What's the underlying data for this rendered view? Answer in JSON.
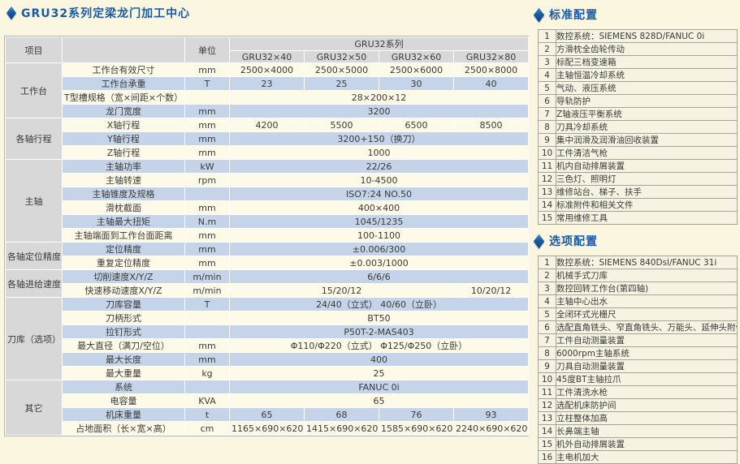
{
  "page": {
    "title": "GRU32系列定梁龙门加工中心"
  },
  "colors": {
    "title_blue": "#1b5aa5",
    "header_grey": "#d8d8d8",
    "row_cream": "#fdfae7",
    "row_blue": "#c5d4e8",
    "page_background": "#faf6df",
    "config_row_bg": "#f6f3e2"
  },
  "spec_table": {
    "header": {
      "item_label": "项目",
      "unit_label": "单位",
      "series_label": "GRU32系列",
      "models": [
        "GRU32×40",
        "GRU32×50",
        "GRU32×60",
        "GRU32×80"
      ]
    },
    "groups": [
      {
        "label": "工作台",
        "rows": [
          {
            "name": "工作台有效尺寸",
            "unit": "mm",
            "cells": [
              {
                "text": "2500×4000",
                "colspan": 1
              },
              {
                "text": "2500×5000",
                "colspan": 1
              },
              {
                "text": "2500×6000",
                "colspan": 1
              },
              {
                "text": "2500×8000",
                "colspan": 1
              }
            ]
          },
          {
            "name": "工作台承重",
            "unit": "T",
            "cells": [
              {
                "text": "23",
                "colspan": 1
              },
              {
                "text": "25",
                "colspan": 1
              },
              {
                "text": "30",
                "colspan": 1
              },
              {
                "text": "40",
                "colspan": 1
              }
            ]
          },
          {
            "name": "T型槽规格（宽×间距×个数）",
            "unit": "",
            "cells": [
              {
                "text": "28×200×12",
                "colspan": 4
              }
            ]
          },
          {
            "name": "龙门宽度",
            "unit": "mm",
            "cells": [
              {
                "text": "3200",
                "colspan": 4
              }
            ]
          }
        ]
      },
      {
        "label": "各轴行程",
        "rows": [
          {
            "name": "X轴行程",
            "unit": "mm",
            "cells": [
              {
                "text": "4200",
                "colspan": 1
              },
              {
                "text": "5500",
                "colspan": 1
              },
              {
                "text": "6500",
                "colspan": 1
              },
              {
                "text": "8500",
                "colspan": 1
              }
            ]
          },
          {
            "name": "Y轴行程",
            "unit": "mm",
            "cells": [
              {
                "text": "3200+150（换刀）",
                "colspan": 4
              }
            ]
          },
          {
            "name": "Z轴行程",
            "unit": "mm",
            "cells": [
              {
                "text": "1000",
                "colspan": 4
              }
            ]
          }
        ]
      },
      {
        "label": "主轴",
        "rows": [
          {
            "name": "主轴功率",
            "unit": "kW",
            "cells": [
              {
                "text": "22/26",
                "colspan": 4
              }
            ]
          },
          {
            "name": "主轴转速",
            "unit": "rpm",
            "cells": [
              {
                "text": "10-4500",
                "colspan": 4
              }
            ]
          },
          {
            "name": "主轴锥度及规格",
            "unit": "",
            "cells": [
              {
                "text": "ISO7:24 NO.50",
                "colspan": 4
              }
            ]
          },
          {
            "name": "滑枕截面",
            "unit": "mm",
            "cells": [
              {
                "text": "400×400",
                "colspan": 4
              }
            ]
          },
          {
            "name": "主轴最大扭矩",
            "unit": "N.m",
            "cells": [
              {
                "text": "1045/1235",
                "colspan": 4
              }
            ]
          },
          {
            "name": "主轴端面到工作台面距离",
            "unit": "mm",
            "cells": [
              {
                "text": "100-1100",
                "colspan": 4
              }
            ]
          }
        ]
      },
      {
        "label": "各轴定位精度",
        "rows": [
          {
            "name": "定位精度",
            "unit": "mm",
            "cells": [
              {
                "text": "±0.006/300",
                "colspan": 4
              }
            ]
          },
          {
            "name": "重复定位精度",
            "unit": "mm",
            "cells": [
              {
                "text": "±0.003/1000",
                "colspan": 4
              }
            ]
          }
        ]
      },
      {
        "label": "各轴进给速度",
        "rows": [
          {
            "name": "切削速度X/Y/Z",
            "unit": "m/min",
            "cells": [
              {
                "text": "6/6/6",
                "colspan": 4
              }
            ]
          },
          {
            "name": "快速移动速度X/Y/Z",
            "unit": "m/min",
            "cells": [
              {
                "text": "15/20/12",
                "colspan": 3
              },
              {
                "text": "10/20/12",
                "colspan": 1
              }
            ]
          }
        ]
      },
      {
        "label": "刀库（选项）",
        "rows": [
          {
            "name": "刀库容量",
            "unit": "T",
            "cells": [
              {
                "text": "24/40（立式） 40/60（立卧）",
                "colspan": 4
              }
            ]
          },
          {
            "name": "刀柄形式",
            "unit": "",
            "cells": [
              {
                "text": "BT50",
                "colspan": 4
              }
            ]
          },
          {
            "name": "拉钉形式",
            "unit": "",
            "cells": [
              {
                "text": "P50T-2-MAS403",
                "colspan": 4
              }
            ]
          },
          {
            "name": "最大直径（满刀/空位）",
            "unit": "mm",
            "cells": [
              {
                "text": "Φ110/Φ220（立式） Φ125/Φ250（立卧）",
                "colspan": 4
              }
            ]
          },
          {
            "name": "最大长度",
            "unit": "mm",
            "cells": [
              {
                "text": "400",
                "colspan": 4
              }
            ]
          },
          {
            "name": "最大重量",
            "unit": "kg",
            "cells": [
              {
                "text": "25",
                "colspan": 4
              }
            ]
          }
        ]
      },
      {
        "label": "其它",
        "rows": [
          {
            "name": "系统",
            "unit": "",
            "cells": [
              {
                "text": "FANUC 0i",
                "colspan": 4
              }
            ]
          },
          {
            "name": "电容量",
            "unit": "KVA",
            "cells": [
              {
                "text": "65",
                "colspan": 4
              }
            ]
          },
          {
            "name": "机床重量",
            "unit": "t",
            "cells": [
              {
                "text": "65",
                "colspan": 1
              },
              {
                "text": "68",
                "colspan": 1
              },
              {
                "text": "76",
                "colspan": 1
              },
              {
                "text": "93",
                "colspan": 1
              }
            ]
          },
          {
            "name": "占地面积（长×宽×高）",
            "unit": "cm",
            "cells": [
              {
                "text": "1165×690×620",
                "colspan": 1
              },
              {
                "text": "1415×690×620",
                "colspan": 1
              },
              {
                "text": "1585×690×620",
                "colspan": 1
              },
              {
                "text": "2240×690×620",
                "colspan": 1
              }
            ]
          }
        ]
      }
    ]
  },
  "standard_config": {
    "title": "标准配置",
    "items": [
      "数控系统：SIEMENS 828D/FANUC 0i",
      "方滑枕全齿轮传动",
      "标配三档变速箱",
      "主轴恒温冷却系统",
      "气动、液压系统",
      "导轨防护",
      "Z轴液压平衡系统",
      "刀具冷却系统",
      "集中润滑及润滑油回收装置",
      "工件清洁气枪",
      "机内自动排屑装置",
      "三色灯、照明灯",
      "维修站台、梯子、扶手",
      "标准附件和相关文件",
      "常用维修工具"
    ]
  },
  "optional_config": {
    "title": "选项配置",
    "items": [
      "数控系统：SIEMENS 840Dsl/FANUC 31i",
      "机械手式刀库",
      "数控回转工作台(第四轴)",
      "主轴中心出水",
      "全闭环式光栅尺",
      "选配直角铣头、窄直角铣头、万能头、延伸头附件",
      "工件自动测量装置",
      "6000rpm主轴系统",
      "刀具自动测量装置",
      "45度BT主轴拉爪",
      "工件清洗水枪",
      "选配机床防护间",
      "立柱整体加高",
      "长鼻端主轴",
      "机外自动排屑装置",
      "主电机加大"
    ]
  }
}
